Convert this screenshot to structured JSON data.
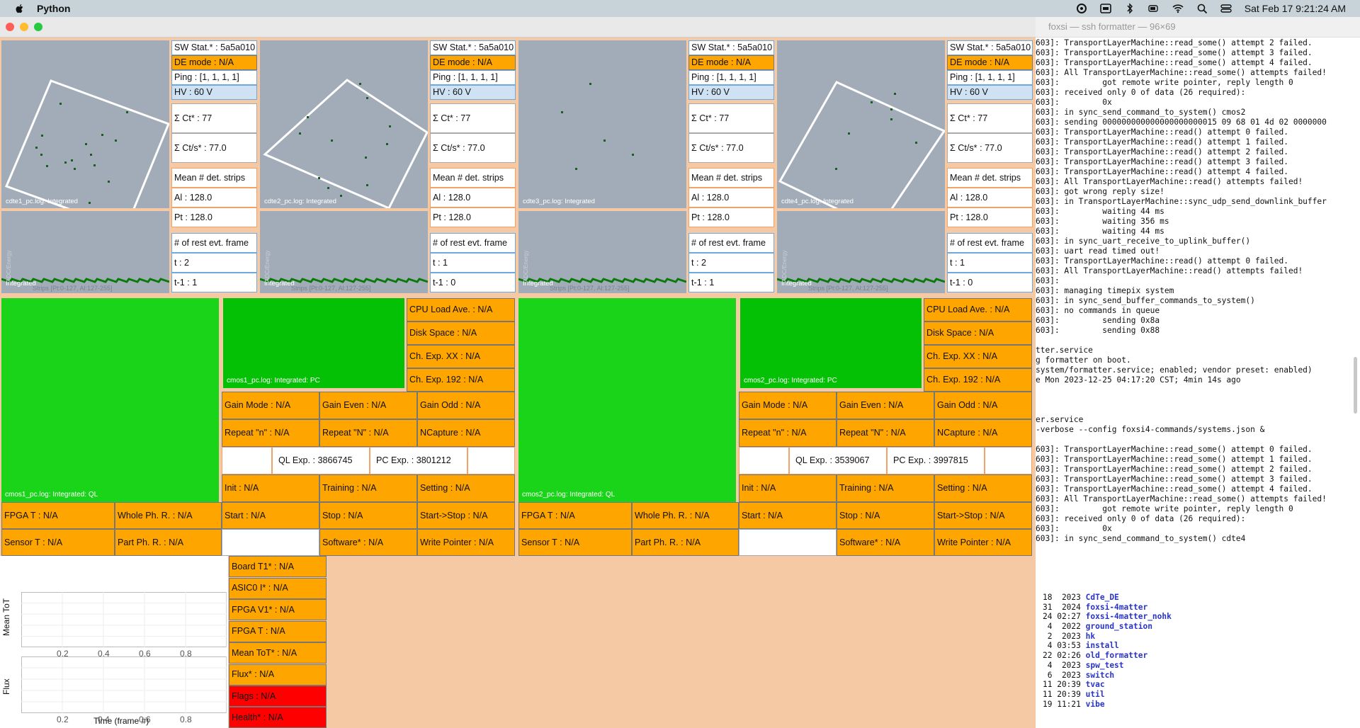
{
  "menubar": {
    "app": "Python",
    "datetime": "Sat Feb 17  9:21:24 AM"
  },
  "terminal": {
    "title": "foxsi — ssh formatter — 96×69",
    "lines": [
      "603]: TransportLayerMachine::read_some() attempt 2 failed.",
      "603]: TransportLayerMachine::read_some() attempt 3 failed.",
      "603]: TransportLayerMachine::read_some() attempt 4 failed.",
      "603]: All TransportLayerMachine::read_some() attempts failed!",
      "603]:         got remote write pointer, reply length 0",
      "603]: received only 0 of data (26 required):",
      "603]:         0x",
      "603]: in sync_send_command_to_system() cmos2",
      "603]: sending 000000000000000000000015 09 68 01 4d 02 0000000",
      "603]: TransportLayerMachine::read() attempt 0 failed.",
      "603]: TransportLayerMachine::read() attempt 1 failed.",
      "603]: TransportLayerMachine::read() attempt 2 failed.",
      "603]: TransportLayerMachine::read() attempt 3 failed.",
      "603]: TransportLayerMachine::read() attempt 4 failed.",
      "603]: All TransportLayerMachine::read() attempts failed!",
      "603]: got wrong reply size!",
      "603]: in TransportLayerMachine::sync_udp_send_downlink_buffer",
      "603]:         waiting 44 ms",
      "603]:         waiting 356 ms",
      "603]:         waiting 44 ms",
      "603]: in sync_uart_receive_to_uplink_buffer()",
      "603]: uart read timed out!",
      "603]: TransportLayerMachine::read() attempt 0 failed.",
      "603]: All TransportLayerMachine::read() attempts failed!",
      "603]:",
      "603]: managing timepix system",
      "603]: in sync_send_buffer_commands_to_system()",
      "603]: no commands in queue",
      "603]:         sending 0x8a",
      "603]:         sending 0x88",
      "",
      "tter.service",
      "g formatter on boot.",
      "system/formatter.service; enabled; vendor preset: enabled)",
      "e Mon 2023-12-25 04:17:20 CST; 4min 14s ago",
      "",
      "",
      "",
      "er.service",
      "-verbose --config foxsi4-commands/systems.json &",
      "",
      "603]: TransportLayerMachine::read_some() attempt 0 failed.",
      "603]: TransportLayerMachine::read_some() attempt 1 failed.",
      "603]: TransportLayerMachine::read_some() attempt 2 failed.",
      "603]: TransportLayerMachine::read_some() attempt 3 failed.",
      "603]: TransportLayerMachine::read_some() attempt 4 failed.",
      "603]: All TransportLayerMachine::read_some() attempts failed!",
      "603]:         got remote write pointer, reply length 0",
      "603]: received only 0 of data (26 required):",
      "603]:         0x",
      "603]: in sync_send_command_to_system() cdte4"
    ],
    "listing": [
      {
        "date": "18  2023",
        "name": "CdTe_DE"
      },
      {
        "date": "31  2024",
        "name": "foxsi-4matter"
      },
      {
        "date": "24 02:27",
        "name": "foxsi-4matter_nohk"
      },
      {
        "date": " 4  2022",
        "name": "ground_station"
      },
      {
        "date": " 2  2023",
        "name": "hk"
      },
      {
        "date": " 4 03:53",
        "name": "install"
      },
      {
        "date": "22 02:26",
        "name": "old_formatter"
      },
      {
        "date": " 4  2023",
        "name": "spw_test"
      },
      {
        "date": " 6  2023",
        "name": "switch"
      },
      {
        "date": "11 20:39",
        "name": "tvac"
      },
      {
        "date": "11 20:39",
        "name": "util"
      },
      {
        "date": "19 11:21",
        "name": "vibe"
      }
    ]
  },
  "cdte": [
    {
      "caption": "cdte1_pc.log: Integrated",
      "sw": "SW Stat.* : 5a5a010",
      "de": "DE mode : N/A",
      "ping": "Ping : [1, 1, 1, 1]",
      "hv": "HV : 60 V",
      "ct": "Σ Ct* : 77",
      "cts": "Σ Ct/s* : 77.0",
      "mean": "Mean # det. strips",
      "al": "Al : 128.0",
      "pt": "Pt : 128.0",
      "rest": "# of rest evt. frame",
      "t": "t : 2",
      "t1": "t-1 : 1",
      "int": "Integrated",
      "strips": "Strips [Pt:0-127, Al:127-255]",
      "adc": "ADC/Energy"
    },
    {
      "caption": "cdte2_pc.log: Integrated",
      "sw": "SW Stat.* : 5a5a010",
      "de": "DE mode : N/A",
      "ping": "Ping : [1, 1, 1, 1]",
      "hv": "HV : 60 V",
      "ct": "Σ Ct* : 77",
      "cts": "Σ Ct/s* : 77.0",
      "mean": "Mean # det. strips",
      "al": "Al : 128.0",
      "pt": "Pt : 128.0",
      "rest": "# of rest evt. frame",
      "t": "t : 1",
      "t1": "t-1 : 0",
      "int": "Integrated",
      "strips": "Strips [Pt:0-127, Al:127-255]",
      "adc": "ADC/Energy"
    },
    {
      "caption": "cdte3_pc.log: Integrated",
      "sw": "SW Stat.* : 5a5a010",
      "de": "DE mode : N/A",
      "ping": "Ping : [1, 1, 1, 1]",
      "hv": "HV : 60 V",
      "ct": "Σ Ct* : 77",
      "cts": "Σ Ct/s* : 77.0",
      "mean": "Mean # det. strips",
      "al": "Al : 128.0",
      "pt": "Pt : 128.0",
      "rest": "# of rest evt. frame",
      "t": "t : 2",
      "t1": "t-1 : 1",
      "int": "Integrated",
      "strips": "Strips [Pt:0-127, Al:127-255]",
      "adc": "ADC/Energy"
    },
    {
      "caption": "cdte4_pc.log: Integrated",
      "sw": "SW Stat.* : 5a5a010",
      "de": "DE mode : N/A",
      "ping": "Ping : [1, 1, 1, 1]",
      "hv": "HV : 60 V",
      "ct": "Σ Ct* : 77",
      "cts": "Σ Ct/s* : 77.0",
      "mean": "Mean # det. strips",
      "al": "Al : 128.0",
      "pt": "Pt : 128.0",
      "rest": "# of rest evt. frame",
      "t": "t : 1",
      "t1": "t-1 : 0",
      "int": "Integrated",
      "strips": "Strips [Pt:0-127, Al:127-255]",
      "adc": "ADC/Energy"
    }
  ],
  "cmos": [
    {
      "ql_caption": "cmos1_pc.log: Integrated: QL",
      "pc_caption": "cmos1_pc.log: Integrated: PC",
      "cpu": "CPU Load Ave. : N/A",
      "disk": "Disk Space : N/A",
      "chxx": "Ch. Exp. XX : N/A",
      "ch192": "Ch. Exp. 192 : N/A",
      "gainmode": "Gain Mode : N/A",
      "gaineven": "Gain Even : N/A",
      "gainodd": "Gain Odd : N/A",
      "repn": "Repeat \"n\" : N/A",
      "repN": "Repeat \"N\" : N/A",
      "ncap": "NCapture : N/A",
      "qlexp": "QL Exp. : 3866745",
      "pcexp": "PC Exp. : 3801212",
      "init": "Init : N/A",
      "training": "Training : N/A",
      "setting": "Setting : N/A",
      "start": "Start : N/A",
      "stop": "Stop : N/A",
      "startstop": "Start->Stop : N/A",
      "software": "Software* : N/A",
      "writeptr": "Write Pointer : N/A",
      "fpga": "FPGA T : N/A",
      "whole": "Whole Ph. R. : N/A",
      "sensor": "Sensor T : N/A",
      "part": "Part Ph. R. : N/A"
    },
    {
      "ql_caption": "cmos2_pc.log: Integrated: QL",
      "pc_caption": "cmos2_pc.log: Integrated: PC",
      "cpu": "CPU Load Ave. : N/A",
      "disk": "Disk Space : N/A",
      "chxx": "Ch. Exp. XX : N/A",
      "ch192": "Ch. Exp. 192 : N/A",
      "gainmode": "Gain Mode : N/A",
      "gaineven": "Gain Even : N/A",
      "gainodd": "Gain Odd : N/A",
      "repn": "Repeat \"n\" : N/A",
      "repN": "Repeat \"N\" : N/A",
      "ncap": "NCapture : N/A",
      "qlexp": "QL Exp. : 3539067",
      "pcexp": "PC Exp. : 3997815",
      "init": "Init : N/A",
      "training": "Training : N/A",
      "setting": "Setting : N/A",
      "start": "Start : N/A",
      "stop": "Stop : N/A",
      "startstop": "Start->Stop : N/A",
      "software": "Software* : N/A",
      "writeptr": "Write Pointer : N/A",
      "fpga": "FPGA T : N/A",
      "whole": "Whole Ph. R. : N/A",
      "sensor": "Sensor T : N/A",
      "part": "Part Ph. R. : N/A"
    }
  ],
  "timepix": {
    "board": "Board T1* : N/A",
    "asic": "ASIC0 I* : N/A",
    "fpgav": "FPGA V1* : N/A",
    "fpgat": "FPGA T : N/A",
    "meantot": "Mean ToT* : N/A",
    "flux": "Flux* : N/A",
    "flags": "Flags : N/A",
    "health": "Health* : N/A",
    "plot_ylabel_top": "Mean ToT",
    "plot_ylabel_bottom": "Flux",
    "plot_xlabel": "Time (frame #)",
    "ticks": [
      "0.2",
      "0.4",
      "0.6",
      "0.8"
    ]
  }
}
